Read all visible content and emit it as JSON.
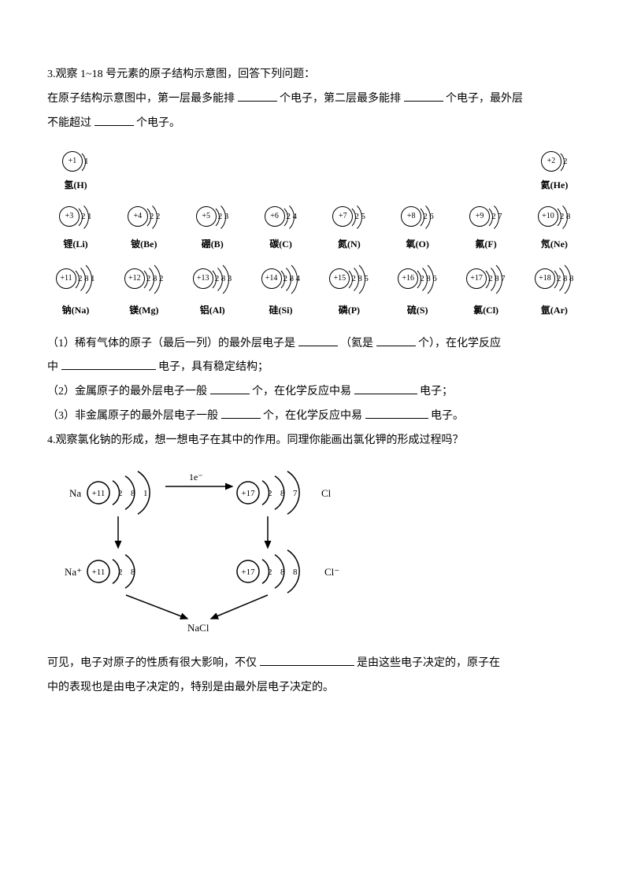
{
  "q3": {
    "heading": "3.观察 1~18 号元素的原子结构示意图，回答下列问题：",
    "intro_a": "在原子结构示意图中，第一层最多能排",
    "intro_b": "个电子，第二层最多能排",
    "intro_c": "个电子，最外层",
    "intro_d": "不能超过",
    "intro_e": "个电子。"
  },
  "elements": {
    "row1": [
      {
        "z": "+1",
        "shells": [
          "1"
        ],
        "label": "氢(H)"
      },
      {
        "z": "+2",
        "shells": [
          "2"
        ],
        "label": "氦(He)"
      }
    ],
    "row2": [
      {
        "z": "+3",
        "shells": [
          "2",
          "1"
        ],
        "label": "锂(Li)"
      },
      {
        "z": "+4",
        "shells": [
          "2",
          "2"
        ],
        "label": "铍(Be)"
      },
      {
        "z": "+5",
        "shells": [
          "2",
          "3"
        ],
        "label": "硼(B)"
      },
      {
        "z": "+6",
        "shells": [
          "2",
          "4"
        ],
        "label": "碳(C)"
      },
      {
        "z": "+7",
        "shells": [
          "2",
          "5"
        ],
        "label": "氮(N)"
      },
      {
        "z": "+8",
        "shells": [
          "2",
          "6"
        ],
        "label": "氧(O)"
      },
      {
        "z": "+9",
        "shells": [
          "2",
          "7"
        ],
        "label": "氟(F)"
      },
      {
        "z": "+10",
        "shells": [
          "2",
          "8"
        ],
        "label": "氖(Ne)"
      }
    ],
    "row3": [
      {
        "z": "+11",
        "shells": [
          "2",
          "8",
          "1"
        ],
        "label": "钠(Na)"
      },
      {
        "z": "+12",
        "shells": [
          "2",
          "8",
          "2"
        ],
        "label": "镁(Mg)"
      },
      {
        "z": "+13",
        "shells": [
          "2",
          "8",
          "3"
        ],
        "label": "铝(Al)"
      },
      {
        "z": "+14",
        "shells": [
          "2",
          "8",
          "4"
        ],
        "label": "硅(Si)"
      },
      {
        "z": "+15",
        "shells": [
          "2",
          "8",
          "5"
        ],
        "label": "磷(P)"
      },
      {
        "z": "+16",
        "shells": [
          "2",
          "8",
          "6"
        ],
        "label": "硫(S)"
      },
      {
        "z": "+17",
        "shells": [
          "2",
          "8",
          "7"
        ],
        "label": "氯(Cl)"
      },
      {
        "z": "+18",
        "shells": [
          "2",
          "8",
          "8"
        ],
        "label": "氩(Ar)"
      }
    ]
  },
  "sub": {
    "s1a": "（1）稀有气体的原子（最后一列）的最外层电子是",
    "s1b": "（氦是",
    "s1c": "个），在化学反应",
    "s1d": "中",
    "s1e": "电子，具有稳定结构；",
    "s2a": "（2）金属原子的最外层电子一般",
    "s2b": "个，在化学反应中易",
    "s2c": "电子；",
    "s3a": "（3）非金属原子的最外层电子一般",
    "s3b": "个，在化学反应中易",
    "s3c": "电子。"
  },
  "q4": {
    "heading": "4.观察氯化钠的形成，想一想电子在其中的作用。同理你能画出氯化钾的形成过程吗？",
    "na": "Na",
    "na_plus": "Na⁺",
    "cl": "Cl",
    "cl_minus": "Cl⁻",
    "e_transfer": "1e⁻",
    "product": "NaCl",
    "atoms": {
      "na": {
        "z": "+11",
        "shells": [
          "2",
          "8",
          "1"
        ]
      },
      "cl": {
        "z": "+17",
        "shells": [
          "2",
          "8",
          "7"
        ]
      },
      "na_ion": {
        "z": "+11",
        "shells": [
          "2",
          "8"
        ]
      },
      "cl_ion": {
        "z": "+17",
        "shells": [
          "2",
          "8",
          "8"
        ]
      }
    },
    "legend_a": "可见，电子对原子的性质有很大影响，不仅",
    "legend_b": "是由这些电子决定的，原子在",
    "legend_c": "中的表现也是由电子决定的，特别是由最外层电子决定的。"
  },
  "style": {
    "text_color": "#000000",
    "background": "#ffffff",
    "font_size_body": 14,
    "font_size_label": 12,
    "line_width": 1.5
  }
}
